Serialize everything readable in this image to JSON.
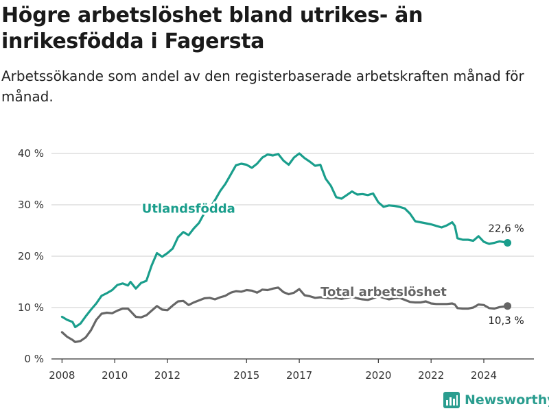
{
  "title": "Högre arbetslöshet bland utrikes- än inrikesfödda i Fagersta",
  "subtitle": "Arbetssökande som andel av den registerbaserade arbetskraften månad för månad.",
  "brand": {
    "name": "Newsworthy",
    "icon": "newsworthy-logo-icon"
  },
  "colors": {
    "foreign": "#1a9e8c",
    "total": "#666666",
    "grid": "#cccccc",
    "axis": "#333333"
  },
  "chart_data": {
    "type": "line",
    "x_unit": "year",
    "xlim": [
      2007.6,
      2025.9
    ],
    "ylim": [
      0,
      40
    ],
    "yticks": [
      0,
      10,
      20,
      30,
      40
    ],
    "ytick_labels": [
      "0 %",
      "10 %",
      "20 %",
      "30 %",
      "40 %"
    ],
    "xticks": [
      2008,
      2010,
      2012,
      2015,
      2017,
      2020,
      2022,
      2024
    ],
    "xtick_labels": [
      "2008",
      "2010",
      "2012",
      "2015",
      "2017",
      "2020",
      "2022",
      "2024"
    ],
    "grid": "horizontal",
    "series": [
      {
        "name": "Utlandsfödda",
        "color": "#1a9e8c",
        "end_label": "22,6 %",
        "points": [
          [
            2008.0,
            8.2
          ],
          [
            2008.2,
            7.6
          ],
          [
            2008.4,
            7.2
          ],
          [
            2008.5,
            6.2
          ],
          [
            2008.7,
            6.9
          ],
          [
            2008.9,
            8.3
          ],
          [
            2009.1,
            9.6
          ],
          [
            2009.3,
            10.8
          ],
          [
            2009.5,
            12.3
          ],
          [
            2009.7,
            12.8
          ],
          [
            2009.9,
            13.4
          ],
          [
            2010.1,
            14.4
          ],
          [
            2010.3,
            14.7
          ],
          [
            2010.5,
            14.3
          ],
          [
            2010.6,
            15.0
          ],
          [
            2010.8,
            13.7
          ],
          [
            2011.0,
            14.8
          ],
          [
            2011.2,
            15.2
          ],
          [
            2011.4,
            18.2
          ],
          [
            2011.6,
            20.6
          ],
          [
            2011.8,
            19.9
          ],
          [
            2012.0,
            20.6
          ],
          [
            2012.2,
            21.5
          ],
          [
            2012.4,
            23.7
          ],
          [
            2012.6,
            24.7
          ],
          [
            2012.8,
            24.1
          ],
          [
            2013.0,
            25.4
          ],
          [
            2013.2,
            26.5
          ],
          [
            2013.4,
            28.4
          ],
          [
            2013.6,
            29.3
          ],
          [
            2013.8,
            30.9
          ],
          [
            2014.0,
            32.7
          ],
          [
            2014.2,
            34.1
          ],
          [
            2014.4,
            35.9
          ],
          [
            2014.6,
            37.7
          ],
          [
            2014.8,
            38.0
          ],
          [
            2015.0,
            37.8
          ],
          [
            2015.2,
            37.2
          ],
          [
            2015.4,
            38.0
          ],
          [
            2015.6,
            39.2
          ],
          [
            2015.8,
            39.8
          ],
          [
            2016.0,
            39.6
          ],
          [
            2016.2,
            39.9
          ],
          [
            2016.4,
            38.6
          ],
          [
            2016.6,
            37.8
          ],
          [
            2016.8,
            39.2
          ],
          [
            2017.0,
            40.0
          ],
          [
            2017.2,
            39.1
          ],
          [
            2017.4,
            38.4
          ],
          [
            2017.6,
            37.6
          ],
          [
            2017.8,
            37.8
          ],
          [
            2018.0,
            35.1
          ],
          [
            2018.2,
            33.7
          ],
          [
            2018.4,
            31.5
          ],
          [
            2018.6,
            31.2
          ],
          [
            2018.8,
            31.9
          ],
          [
            2019.0,
            32.6
          ],
          [
            2019.2,
            32.0
          ],
          [
            2019.4,
            32.1
          ],
          [
            2019.6,
            31.9
          ],
          [
            2019.8,
            32.2
          ],
          [
            2020.0,
            30.5
          ],
          [
            2020.2,
            29.6
          ],
          [
            2020.4,
            29.9
          ],
          [
            2020.6,
            29.8
          ],
          [
            2020.8,
            29.6
          ],
          [
            2021.0,
            29.3
          ],
          [
            2021.2,
            28.3
          ],
          [
            2021.4,
            26.8
          ],
          [
            2021.6,
            26.6
          ],
          [
            2021.8,
            26.4
          ],
          [
            2022.0,
            26.2
          ],
          [
            2022.2,
            25.9
          ],
          [
            2022.4,
            25.6
          ],
          [
            2022.6,
            26.0
          ],
          [
            2022.8,
            26.6
          ],
          [
            2022.9,
            25.9
          ],
          [
            2023.0,
            23.5
          ],
          [
            2023.2,
            23.2
          ],
          [
            2023.4,
            23.2
          ],
          [
            2023.6,
            23.0
          ],
          [
            2023.8,
            23.9
          ],
          [
            2024.0,
            22.8
          ],
          [
            2024.2,
            22.4
          ],
          [
            2024.4,
            22.6
          ],
          [
            2024.6,
            22.9
          ],
          [
            2024.9,
            22.6
          ]
        ]
      },
      {
        "name": "Total arbetslöshet",
        "color": "#666666",
        "end_label": "10,3 %",
        "points": [
          [
            2008.0,
            5.2
          ],
          [
            2008.2,
            4.3
          ],
          [
            2008.4,
            3.7
          ],
          [
            2008.5,
            3.3
          ],
          [
            2008.7,
            3.5
          ],
          [
            2008.9,
            4.2
          ],
          [
            2009.1,
            5.6
          ],
          [
            2009.3,
            7.6
          ],
          [
            2009.5,
            8.8
          ],
          [
            2009.7,
            9.0
          ],
          [
            2009.9,
            8.9
          ],
          [
            2010.1,
            9.4
          ],
          [
            2010.3,
            9.8
          ],
          [
            2010.5,
            9.8
          ],
          [
            2010.6,
            9.3
          ],
          [
            2010.8,
            8.2
          ],
          [
            2011.0,
            8.1
          ],
          [
            2011.2,
            8.5
          ],
          [
            2011.4,
            9.4
          ],
          [
            2011.6,
            10.3
          ],
          [
            2011.8,
            9.6
          ],
          [
            2012.0,
            9.5
          ],
          [
            2012.2,
            10.4
          ],
          [
            2012.4,
            11.2
          ],
          [
            2012.6,
            11.3
          ],
          [
            2012.8,
            10.5
          ],
          [
            2013.0,
            11.0
          ],
          [
            2013.2,
            11.4
          ],
          [
            2013.4,
            11.8
          ],
          [
            2013.6,
            11.9
          ],
          [
            2013.8,
            11.6
          ],
          [
            2014.0,
            12.0
          ],
          [
            2014.2,
            12.3
          ],
          [
            2014.4,
            12.9
          ],
          [
            2014.6,
            13.2
          ],
          [
            2014.8,
            13.1
          ],
          [
            2015.0,
            13.4
          ],
          [
            2015.2,
            13.3
          ],
          [
            2015.4,
            12.9
          ],
          [
            2015.6,
            13.5
          ],
          [
            2015.8,
            13.4
          ],
          [
            2016.0,
            13.7
          ],
          [
            2016.2,
            13.9
          ],
          [
            2016.4,
            13.0
          ],
          [
            2016.6,
            12.6
          ],
          [
            2016.8,
            12.9
          ],
          [
            2017.0,
            13.6
          ],
          [
            2017.2,
            12.4
          ],
          [
            2017.4,
            12.2
          ],
          [
            2017.6,
            11.9
          ],
          [
            2017.8,
            12.0
          ],
          [
            2018.0,
            11.9
          ],
          [
            2018.2,
            11.8
          ],
          [
            2018.4,
            11.9
          ],
          [
            2018.6,
            11.7
          ],
          [
            2018.8,
            11.9
          ],
          [
            2019.0,
            12.1
          ],
          [
            2019.2,
            11.8
          ],
          [
            2019.4,
            11.6
          ],
          [
            2019.6,
            11.5
          ],
          [
            2019.8,
            11.8
          ],
          [
            2020.0,
            12.2
          ],
          [
            2020.2,
            11.9
          ],
          [
            2020.4,
            11.6
          ],
          [
            2020.6,
            11.8
          ],
          [
            2020.8,
            11.9
          ],
          [
            2021.0,
            11.5
          ],
          [
            2021.2,
            11.1
          ],
          [
            2021.4,
            11.0
          ],
          [
            2021.6,
            11.0
          ],
          [
            2021.8,
            11.2
          ],
          [
            2022.0,
            10.8
          ],
          [
            2022.2,
            10.7
          ],
          [
            2022.4,
            10.7
          ],
          [
            2022.6,
            10.7
          ],
          [
            2022.8,
            10.8
          ],
          [
            2022.9,
            10.6
          ],
          [
            2023.0,
            9.9
          ],
          [
            2023.2,
            9.8
          ],
          [
            2023.4,
            9.8
          ],
          [
            2023.6,
            10.0
          ],
          [
            2023.8,
            10.6
          ],
          [
            2024.0,
            10.5
          ],
          [
            2024.2,
            9.9
          ],
          [
            2024.4,
            9.8
          ],
          [
            2024.6,
            10.1
          ],
          [
            2024.9,
            10.3
          ]
        ]
      }
    ],
    "annotations": [
      {
        "text": "Utlandsfödda",
        "series": 0,
        "x": 2012.8,
        "y": 28.5
      },
      {
        "text": "Total arbetslöshet",
        "series": 1,
        "x": 2020.2,
        "y": 12.3
      }
    ]
  }
}
